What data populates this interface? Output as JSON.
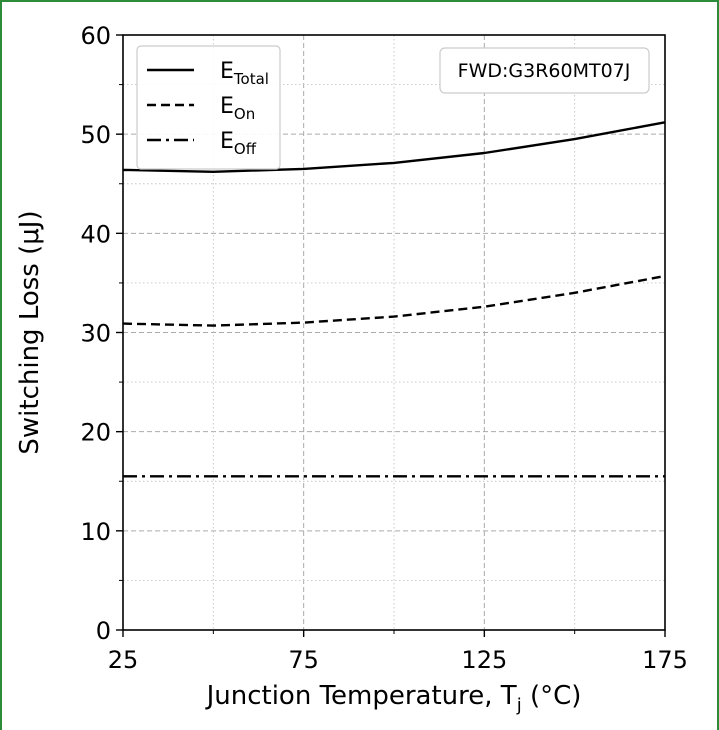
{
  "chart_data": {
    "type": "line",
    "xlabel": "Junction Temperature, T",
    "xlabel_sub": "j",
    "xlabel_unit": " (°C)",
    "ylabel": "Switching Loss (μJ)",
    "xlim": [
      25,
      175
    ],
    "ylim": [
      0,
      60
    ],
    "xticks": [
      "25",
      "75",
      "125",
      "175"
    ],
    "yticks": [
      "0",
      "10",
      "20",
      "30",
      "40",
      "50",
      "60"
    ],
    "grid": true,
    "legend_position": "top-left",
    "annotation": "FWD:G3R60MT07J",
    "series": [
      {
        "name": "E",
        "sub": "Total",
        "dash": "solid",
        "x": [
          25,
          50,
          75,
          100,
          125,
          150,
          175
        ],
        "y": [
          46.4,
          46.2,
          46.5,
          47.1,
          48.1,
          49.5,
          51.2
        ]
      },
      {
        "name": "E",
        "sub": "On",
        "dash": "dashed",
        "x": [
          25,
          50,
          75,
          100,
          125,
          150,
          175
        ],
        "y": [
          30.9,
          30.7,
          31.0,
          31.6,
          32.6,
          34.0,
          35.7
        ]
      },
      {
        "name": "E",
        "sub": "Off",
        "dash": "dashdot",
        "x": [
          25,
          50,
          75,
          100,
          125,
          150,
          175
        ],
        "y": [
          15.5,
          15.5,
          15.5,
          15.5,
          15.5,
          15.5,
          15.5
        ]
      }
    ]
  }
}
